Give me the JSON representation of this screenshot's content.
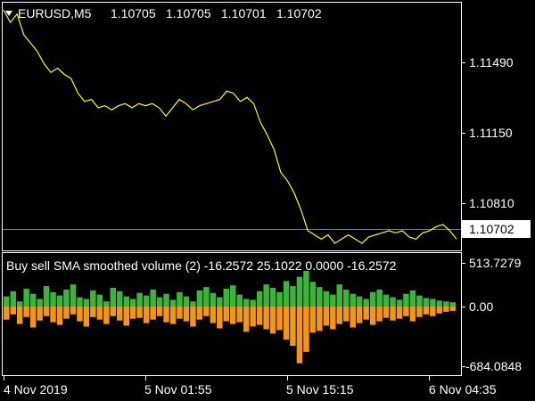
{
  "main_chart": {
    "symbol_timeframe": "EURUSD,M5",
    "ohlc": [
      "1.10705",
      "1.10705",
      "1.10701",
      "1.10702"
    ],
    "price_axis_labels": [
      "1.11490",
      "1.11150",
      "1.10810"
    ],
    "current_price": "1.10702",
    "line_color": "#FFFF00",
    "price_range": [
      1.1065,
      1.1183
    ]
  },
  "indicator": {
    "label": "Buy sell SMA smoothed volume (2) -16.2572 25.1022 0.0000 -16.2572",
    "axis_labels": [
      "513.7279",
      "0.00",
      "-684.0848"
    ],
    "buy_color": "#3CB43C",
    "sell_color": "#F0961E"
  },
  "time_axis": {
    "labels": [
      "4 Nov 2019",
      "5 Nov 01:55",
      "5 Nov 15:15",
      "6 Nov 04:35"
    ]
  },
  "chart_data": {
    "type": "line",
    "series": [
      {
        "values": [
          1.118,
          1.1174,
          1.1178,
          1.1168,
          1.1164,
          1.116,
          1.1154,
          1.115,
          1.1152,
          1.1149,
          1.1147,
          1.114,
          1.1136,
          1.1137,
          1.1133,
          1.1134,
          1.1132,
          1.1134,
          1.1135,
          1.1133,
          1.1135,
          1.1134,
          1.1135,
          1.1133,
          1.1129,
          1.1133,
          1.1137,
          1.1135,
          1.1132,
          1.1134,
          1.1135,
          1.1136,
          1.1137,
          1.1141,
          1.114,
          1.1136,
          1.1138,
          1.1135,
          1.1126,
          1.112,
          1.1113,
          1.1102,
          1.1098,
          1.1092,
          1.1084,
          1.1074,
          1.1072,
          1.107,
          1.1072,
          1.1068,
          1.107,
          1.1072,
          1.107,
          1.1068,
          1.1071,
          1.1072,
          1.1073,
          1.1074,
          1.1073,
          1.1074,
          1.1071,
          1.107,
          1.1073,
          1.1074,
          1.1076,
          1.1077,
          1.1074,
          1.107
        ]
      }
    ],
    "indicator_series": [
      {
        "name": "buy",
        "values": [
          120,
          180,
          60,
          210,
          150,
          90,
          240,
          170,
          130,
          200,
          260,
          110,
          90,
          190,
          140,
          60,
          220,
          180,
          120,
          90,
          160,
          130,
          200,
          110,
          150,
          80,
          170,
          120,
          60,
          190,
          230,
          160,
          110,
          210,
          250,
          140,
          90,
          80,
          180,
          260,
          220,
          170,
          300,
          240,
          350,
          420,
          290,
          230,
          180,
          140,
          260,
          200,
          150,
          120,
          90,
          170,
          200,
          140,
          110,
          80,
          150,
          190,
          130,
          100,
          90,
          70,
          60,
          50
        ]
      },
      {
        "name": "sell",
        "values": [
          -150,
          -90,
          -200,
          -120,
          -240,
          -160,
          -110,
          -180,
          -210,
          -140,
          -90,
          -170,
          -230,
          -120,
          -150,
          -200,
          -110,
          -160,
          -220,
          -140,
          -130,
          -190,
          -150,
          -110,
          -180,
          -200,
          -140,
          -170,
          -230,
          -150,
          -110,
          -190,
          -250,
          -170,
          -200,
          -180,
          -290,
          -230,
          -210,
          -260,
          -310,
          -270,
          -380,
          -450,
          -650,
          -520,
          -300,
          -280,
          -220,
          -260,
          -200,
          -170,
          -240,
          -190,
          -150,
          -210,
          -170,
          -130,
          -160,
          -140,
          -110,
          -170,
          -120,
          -90,
          -110,
          -80,
          -60,
          -50
        ]
      }
    ],
    "indicator_range": [
      -684.0848,
      513.7279
    ]
  }
}
